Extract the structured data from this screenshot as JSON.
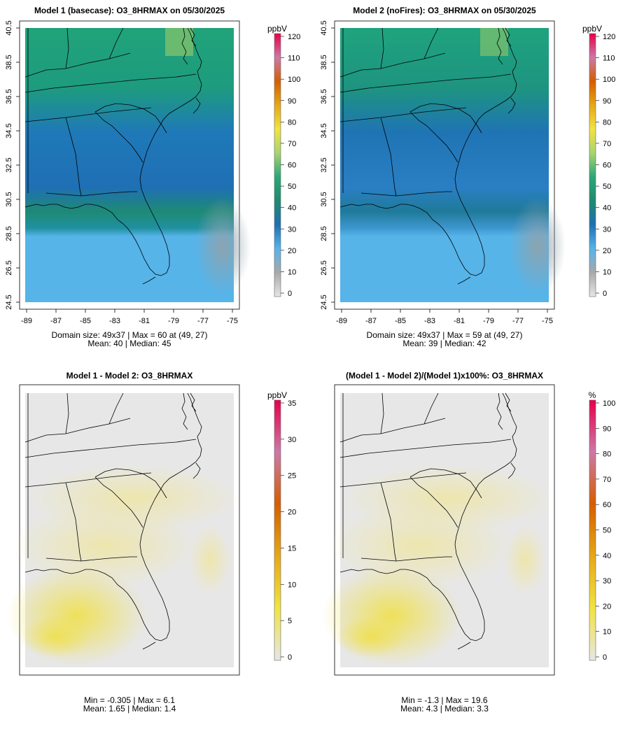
{
  "panels": [
    {
      "title": "Model 1 (basecase): O3_8HRMAX on 05/30/2025",
      "stats_line1": "Domain size: 49x37 | Max = 60 at (49, 27)",
      "stats_line2": "Mean: 40 |  Median: 45",
      "colorbar": {
        "unit": "ppbV",
        "ticks": [
          "0",
          "10",
          "20",
          "30",
          "40",
          "50",
          "60",
          "70",
          "80",
          "90",
          "100",
          "110",
          "120"
        ]
      },
      "xticks": [
        "-89",
        "-87",
        "-85",
        "-83",
        "-81",
        "-79",
        "-77",
        "-75"
      ],
      "yticks": [
        "24.5",
        "26.5",
        "28.5",
        "30.5",
        "32.5",
        "34.5",
        "36.5",
        "38.5",
        "40.5"
      ]
    },
    {
      "title": "Model 2 (noFires): O3_8HRMAX on 05/30/2025",
      "stats_line1": "Domain size: 49x37 | Max = 59 at (49, 27)",
      "stats_line2": "Mean: 39 |  Median: 42",
      "colorbar": {
        "unit": "ppbV",
        "ticks": [
          "0",
          "10",
          "20",
          "30",
          "40",
          "50",
          "60",
          "70",
          "80",
          "90",
          "100",
          "110",
          "120"
        ]
      },
      "xticks": [
        "-89",
        "-87",
        "-85",
        "-83",
        "-81",
        "-79",
        "-77",
        "-75"
      ],
      "yticks": [
        "24.5",
        "26.5",
        "28.5",
        "30.5",
        "32.5",
        "34.5",
        "36.5",
        "38.5",
        "40.5"
      ]
    },
    {
      "title": "Model 1 - Model 2: O3_8HRMAX",
      "stats_line1": "Min = -0.305 | Max = 6.1",
      "stats_line2": "Mean: 1.65 |  Median: 1.4",
      "colorbar": {
        "unit": "ppbV",
        "ticks": [
          "0",
          "5",
          "10",
          "15",
          "20",
          "25",
          "30",
          "35"
        ]
      }
    },
    {
      "title": "(Model 1 - Model 2)/(Model 1)x100%: O3_8HRMAX",
      "stats_line1": "Min = -1.3 | Max = 19.6",
      "stats_line2": "Mean: 4.3 |  Median: 3.3",
      "colorbar": {
        "unit": "%",
        "ticks": [
          "0",
          "10",
          "20",
          "30",
          "40",
          "50",
          "60",
          "70",
          "80",
          "90",
          "100"
        ]
      }
    }
  ],
  "colors": {
    "conc_scale": [
      "#e6e6e6",
      "#a9a9a9",
      "#56b4e9",
      "#1f6fb4",
      "#1f8a70",
      "#2aa876",
      "#a8d46f",
      "#f0e442",
      "#e6a817",
      "#d55e00",
      "#cc79a7",
      "#e8004a"
    ],
    "diff_scale": [
      "#e6e6e6",
      "#f0e442",
      "#e6a817",
      "#d55e00",
      "#cc79a7",
      "#e8004a"
    ],
    "map_background": "#ffffff"
  }
}
